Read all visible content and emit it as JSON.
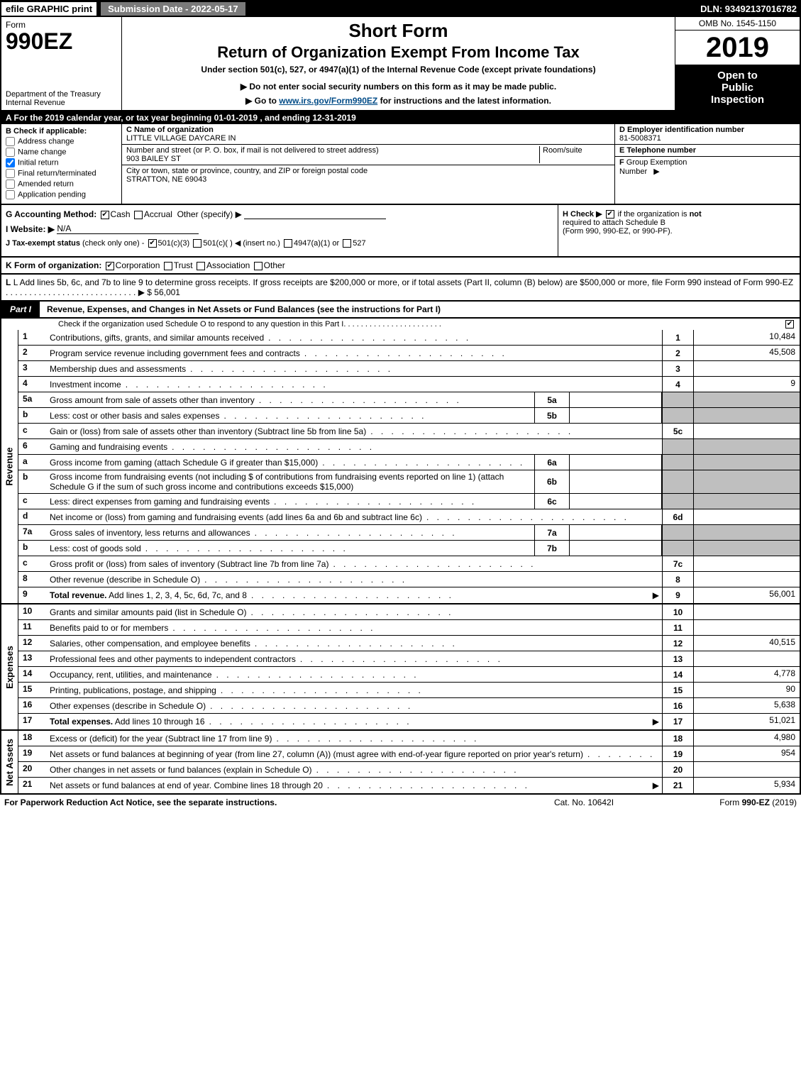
{
  "top": {
    "efile": "efile GRAPHIC print",
    "submission": "Submission Date - 2022-05-17",
    "dln": "DLN: 93492137016782"
  },
  "header": {
    "form_word": "Form",
    "form_num": "990EZ",
    "dept1": "Department of the Treasury",
    "dept2": "Internal Revenue",
    "short_form": "Short Form",
    "return_title": "Return of Organization Exempt From Income Tax",
    "under_section": "Under section 501(c), 527, or 4947(a)(1) of the Internal Revenue Code (except private foundations)",
    "do_not": "▶ Do not enter social security numbers on this form as it may be made public.",
    "goto_pre": "▶ Go to ",
    "goto_link": "www.irs.gov/Form990EZ",
    "goto_post": " for instructions and the latest information.",
    "omb": "OMB No. 1545-1150",
    "year": "2019",
    "open1": "Open to",
    "open2": "Public",
    "open3": "Inspection"
  },
  "lineA": "A For the 2019 calendar year, or tax year beginning 01-01-2019 , and ending 12-31-2019",
  "colB": {
    "title": "B  Check if applicable:",
    "items": [
      "Address change",
      "Name change",
      "Initial return",
      "Final return/terminated",
      "Amended return",
      "Application pending"
    ],
    "checked": [
      false,
      false,
      true,
      false,
      false,
      false
    ]
  },
  "colC": {
    "name_label": "C Name of organization",
    "name": "LITTLE VILLAGE DAYCARE IN",
    "street_label": "Number and street (or P. O. box, if mail is not delivered to street address)",
    "room_label": "Room/suite",
    "street": "903 BAILEY ST",
    "city_label": "City or town, state or province, country, and ZIP or foreign postal code",
    "city": "STRATTON, NE  69043"
  },
  "colD": {
    "d_label": "D Employer identification number",
    "d_val": "81-5008371",
    "e_label": "E Telephone number",
    "e_val": "",
    "f_label": "F Group Exemption Number  ▶",
    "f_val": ""
  },
  "g": {
    "label": "G Accounting Method:",
    "cash": "Cash",
    "accrual": "Accrual",
    "other": "Other (specify) ▶"
  },
  "h": {
    "text1": "H  Check ▶",
    "text2": "if the organization is ",
    "not": "not",
    "text3": " required to attach Schedule B",
    "text4": "(Form 990, 990-EZ, or 990-PF)."
  },
  "i": {
    "label": "I Website: ▶",
    "val": "N/A"
  },
  "j": {
    "label": "J Tax-exempt status",
    "sub": "(check only one) -",
    "o1": "501(c)(3)",
    "o2": "501(c)(  )",
    "o2b": "◀ (insert no.)",
    "o3": "4947(a)(1) or",
    "o4": "527"
  },
  "k": {
    "label": "K Form of organization:",
    "o1": "Corporation",
    "o2": "Trust",
    "o3": "Association",
    "o4": "Other"
  },
  "l": {
    "text": "L Add lines 5b, 6c, and 7b to line 9 to determine gross receipts. If gross receipts are $200,000 or more, or if total assets (Part II, column (B) below) are $500,000 or more, file Form 990 instead of Form 990-EZ",
    "amount": "▶ $ 56,001"
  },
  "part1": {
    "label": "Part I",
    "title": "Revenue, Expenses, and Changes in Net Assets or Fund Balances (see the instructions for Part I)",
    "sub": "Check if the organization used Schedule O to respond to any question in this Part I"
  },
  "sections": {
    "revenue_label": "Revenue",
    "expenses_label": "Expenses",
    "netassets_label": "Net Assets"
  },
  "lines": {
    "1": {
      "n": "1",
      "d": "Contributions, gifts, grants, and similar amounts received",
      "r": "1",
      "v": "10,484"
    },
    "2": {
      "n": "2",
      "d": "Program service revenue including government fees and contracts",
      "r": "2",
      "v": "45,508"
    },
    "3": {
      "n": "3",
      "d": "Membership dues and assessments",
      "r": "3",
      "v": ""
    },
    "4": {
      "n": "4",
      "d": "Investment income",
      "r": "4",
      "v": "9"
    },
    "5a": {
      "n": "5a",
      "d": "Gross amount from sale of assets other than inventory",
      "m": "5a"
    },
    "5b": {
      "n": "b",
      "d": "Less: cost or other basis and sales expenses",
      "m": "5b"
    },
    "5c": {
      "n": "c",
      "d": "Gain or (loss) from sale of assets other than inventory (Subtract line 5b from line 5a)",
      "r": "5c",
      "v": ""
    },
    "6": {
      "n": "6",
      "d": "Gaming and fundraising events"
    },
    "6a": {
      "n": "a",
      "d": "Gross income from gaming (attach Schedule G if greater than $15,000)",
      "m": "6a"
    },
    "6b": {
      "n": "b",
      "d": "Gross income from fundraising events (not including $                of contributions from fundraising events reported on line 1) (attach Schedule G if the sum of such gross income and contributions exceeds $15,000)",
      "m": "6b"
    },
    "6c": {
      "n": "c",
      "d": "Less: direct expenses from gaming and fundraising events",
      "m": "6c"
    },
    "6d": {
      "n": "d",
      "d": "Net income or (loss) from gaming and fundraising events (add lines 6a and 6b and subtract line 6c)",
      "r": "6d",
      "v": ""
    },
    "7a": {
      "n": "7a",
      "d": "Gross sales of inventory, less returns and allowances",
      "m": "7a"
    },
    "7b": {
      "n": "b",
      "d": "Less: cost of goods sold",
      "m": "7b"
    },
    "7c": {
      "n": "c",
      "d": "Gross profit or (loss) from sales of inventory (Subtract line 7b from line 7a)",
      "r": "7c",
      "v": ""
    },
    "8": {
      "n": "8",
      "d": "Other revenue (describe in Schedule O)",
      "r": "8",
      "v": ""
    },
    "9": {
      "n": "9",
      "d": "Total revenue. Add lines 1, 2, 3, 4, 5c, 6d, 7c, and 8",
      "r": "9",
      "v": "56,001",
      "arrow": true,
      "bold": true
    },
    "10": {
      "n": "10",
      "d": "Grants and similar amounts paid (list in Schedule O)",
      "r": "10",
      "v": ""
    },
    "11": {
      "n": "11",
      "d": "Benefits paid to or for members",
      "r": "11",
      "v": ""
    },
    "12": {
      "n": "12",
      "d": "Salaries, other compensation, and employee benefits",
      "r": "12",
      "v": "40,515"
    },
    "13": {
      "n": "13",
      "d": "Professional fees and other payments to independent contractors",
      "r": "13",
      "v": ""
    },
    "14": {
      "n": "14",
      "d": "Occupancy, rent, utilities, and maintenance",
      "r": "14",
      "v": "4,778"
    },
    "15": {
      "n": "15",
      "d": "Printing, publications, postage, and shipping",
      "r": "15",
      "v": "90"
    },
    "16": {
      "n": "16",
      "d": "Other expenses (describe in Schedule O)",
      "r": "16",
      "v": "5,638"
    },
    "17": {
      "n": "17",
      "d": "Total expenses. Add lines 10 through 16",
      "r": "17",
      "v": "51,021",
      "arrow": true,
      "bold": true
    },
    "18": {
      "n": "18",
      "d": "Excess or (deficit) for the year (Subtract line 17 from line 9)",
      "r": "18",
      "v": "4,980"
    },
    "19": {
      "n": "19",
      "d": "Net assets or fund balances at beginning of year (from line 27, column (A)) (must agree with end-of-year figure reported on prior year's return)",
      "r": "19",
      "v": "954"
    },
    "20": {
      "n": "20",
      "d": "Other changes in net assets or fund balances (explain in Schedule O)",
      "r": "20",
      "v": ""
    },
    "21": {
      "n": "21",
      "d": "Net assets or fund balances at end of year. Combine lines 18 through 20",
      "r": "21",
      "v": "5,934",
      "arrow": true
    }
  },
  "footer": {
    "left": "For Paperwork Reduction Act Notice, see the separate instructions.",
    "mid": "Cat. No. 10642I",
    "right_pre": "Form ",
    "right_bold": "990-EZ",
    "right_post": " (2019)"
  },
  "colors": {
    "black": "#000000",
    "white": "#ffffff",
    "grey_btn": "#7a7a7a",
    "shade": "#bfbfbf",
    "link": "#004b87"
  }
}
